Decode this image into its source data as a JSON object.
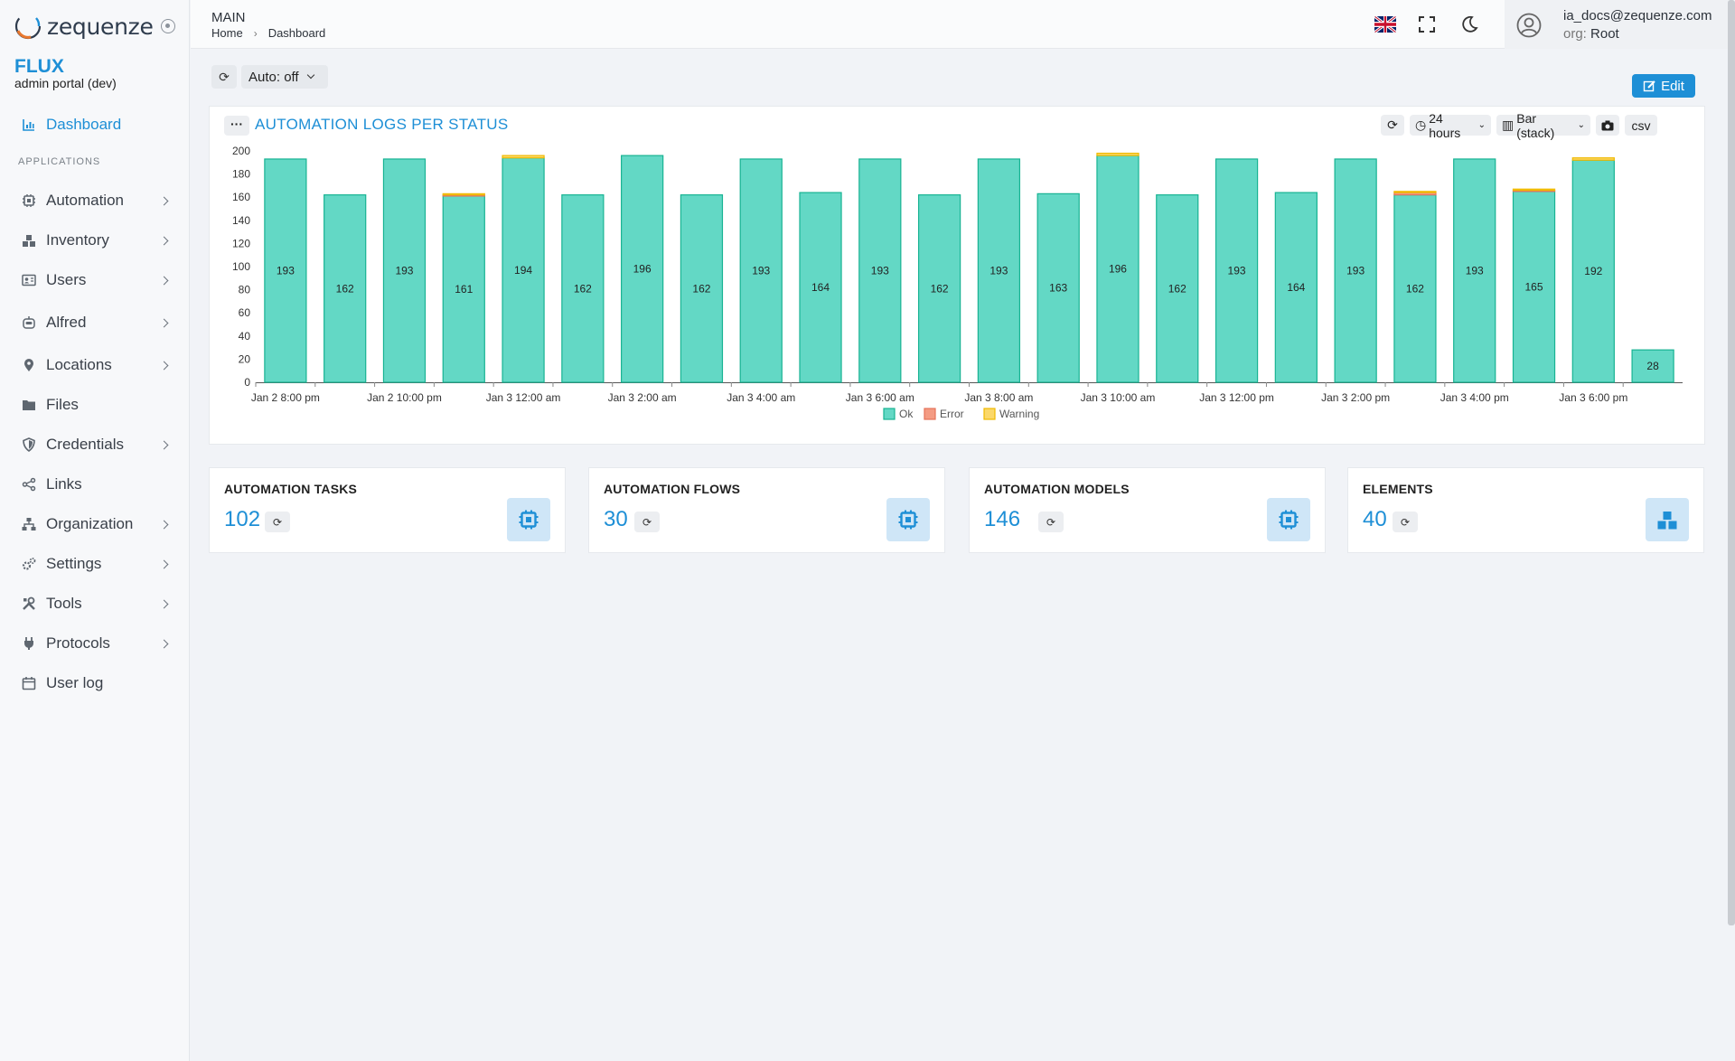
{
  "app": {
    "logo_text": "zequenze",
    "brand_title": "FLUX",
    "brand_subtitle": "admin portal (dev)"
  },
  "sidebar": {
    "section_label": "APPLICATIONS",
    "items": [
      {
        "label": "Dashboard",
        "icon": "bar-chart-icon",
        "active": true,
        "has_children": false
      },
      {
        "label": "Automation",
        "icon": "chip-icon",
        "has_children": true
      },
      {
        "label": "Inventory",
        "icon": "boxes-icon",
        "has_children": true
      },
      {
        "label": "Users",
        "icon": "id-card-icon",
        "has_children": true
      },
      {
        "label": "Alfred",
        "icon": "robot-icon",
        "has_children": true
      },
      {
        "label": "Locations",
        "icon": "map-pin-icon",
        "has_children": true
      },
      {
        "label": "Files",
        "icon": "folder-icon",
        "has_children": false
      },
      {
        "label": "Credentials",
        "icon": "shield-icon",
        "has_children": true
      },
      {
        "label": "Links",
        "icon": "share-icon",
        "has_children": false
      },
      {
        "label": "Organization",
        "icon": "sitemap-icon",
        "has_children": true
      },
      {
        "label": "Settings",
        "icon": "gears-icon",
        "has_children": true
      },
      {
        "label": "Tools",
        "icon": "tools-icon",
        "has_children": true
      },
      {
        "label": "Protocols",
        "icon": "plug-icon",
        "has_children": true
      },
      {
        "label": "User log",
        "icon": "calendar-icon",
        "has_children": false
      }
    ]
  },
  "header": {
    "title": "MAIN",
    "breadcrumb": [
      "Home",
      "Dashboard"
    ],
    "user_email": "ia_docs@zequenze.com",
    "org_key": "org:",
    "org_value": "Root"
  },
  "toolbar": {
    "auto_refresh": "Auto: off",
    "edit_label": "Edit"
  },
  "chart_card": {
    "title": "AUTOMATION LOGS PER STATUS",
    "range_label": "24 hours",
    "type_label": "Bar (stack)",
    "csv_label": "csv"
  },
  "chart_data": {
    "type": "bar",
    "stacked": true,
    "title": "AUTOMATION LOGS PER STATUS",
    "ylim": [
      0,
      200
    ],
    "y_ticks": [
      0,
      20,
      40,
      60,
      80,
      100,
      120,
      140,
      160,
      180,
      200
    ],
    "x_tick_labels": [
      "Jan 2 8:00 pm",
      "Jan 2 10:00 pm",
      "Jan 3 12:00 am",
      "Jan 3 2:00 am",
      "Jan 3 4:00 am",
      "Jan 3 6:00 am",
      "Jan 3 8:00 am",
      "Jan 3 10:00 am",
      "Jan 3 12:00 pm",
      "Jan 3 2:00 pm",
      "Jan 3 4:00 pm",
      "Jan 3 6:00 pm"
    ],
    "legend_position": "bottom-center",
    "grid": false,
    "series": [
      {
        "name": "Ok",
        "color": "#63d8c5",
        "stroke": "#18b393",
        "values": [
          193,
          162,
          193,
          161,
          194,
          162,
          196,
          162,
          193,
          164,
          193,
          162,
          193,
          163,
          196,
          162,
          193,
          164,
          193,
          162,
          193,
          165,
          192,
          28
        ]
      },
      {
        "name": "Error",
        "color": "#f49b83",
        "stroke": "#e5735a",
        "values": [
          0,
          0,
          0,
          1,
          0,
          0,
          0,
          0,
          0,
          0,
          0,
          0,
          0,
          0,
          0,
          0,
          0,
          0,
          0,
          2,
          0,
          1,
          0,
          0
        ]
      },
      {
        "name": "Warning",
        "color": "#fbd86a",
        "stroke": "#f0b900",
        "values": [
          0,
          0,
          0,
          1,
          2,
          0,
          0,
          0,
          0,
          0,
          0,
          0,
          0,
          0,
          2,
          0,
          0,
          0,
          0,
          1,
          0,
          1,
          2,
          0
        ]
      }
    ]
  },
  "stats": [
    {
      "label": "AUTOMATION TASKS",
      "value": "102",
      "icon": "chip-icon"
    },
    {
      "label": "AUTOMATION FLOWS",
      "value": "30",
      "icon": "chip-icon"
    },
    {
      "label": "AUTOMATION MODELS",
      "value": "146",
      "icon": "chip-icon"
    },
    {
      "label": "ELEMENTS",
      "value": "40",
      "icon": "boxes-icon"
    }
  ]
}
